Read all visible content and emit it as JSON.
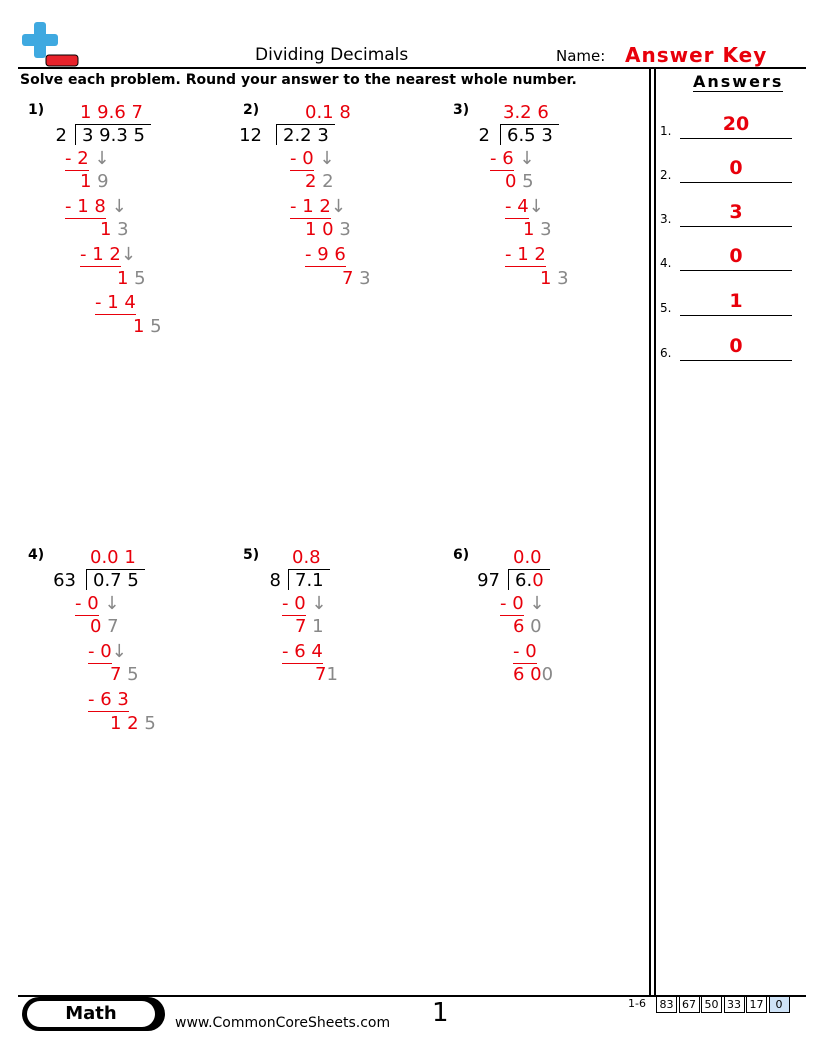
{
  "header": {
    "title": "Dividing Decimals",
    "name_label": "Name:",
    "answer_key": "Answer Key",
    "instructions": "Solve each problem. Round your answer to the nearest whole number."
  },
  "problems": [
    {
      "number": "1)",
      "quotient": "1 9.6 7",
      "divisor": "2",
      "dividend": "3 9.3 5",
      "rows": [
        {
          "red": "- 2",
          "gray": " ↓"
        },
        {
          "red": "1",
          "gray": " 9"
        },
        {
          "red": "- 1 8",
          "gray": " ↓"
        },
        {
          "red": "1",
          "gray": " 3"
        },
        {
          "red": "- 1 2",
          "gray": "↓"
        },
        {
          "red": "1",
          "gray": " 5"
        },
        {
          "red": "- 1 4"
        },
        {
          "red": "1",
          "gray": " 5"
        }
      ]
    },
    {
      "number": "2)",
      "quotient": "0.1 8",
      "divisor": "12",
      "dividend": "2.2 3",
      "rows": [
        {
          "red": "- 0",
          "gray": " ↓"
        },
        {
          "red": "2",
          "gray": " 2"
        },
        {
          "red": "- 1 2",
          "gray": "↓"
        },
        {
          "red": "1 0",
          "gray": " 3"
        },
        {
          "red": "- 9 6"
        },
        {
          "red": "7",
          "gray": " 3"
        }
      ]
    },
    {
      "number": "3)",
      "quotient": "3.2 6",
      "divisor": "2",
      "dividend": "6.5 3",
      "rows": [
        {
          "red": "- 6",
          "gray": " ↓"
        },
        {
          "red": "0",
          "gray": " 5"
        },
        {
          "red": "- 4",
          "gray": "↓"
        },
        {
          "red": "1",
          "gray": " 3"
        },
        {
          "red": "- 1 2"
        },
        {
          "red": "1",
          "gray": " 3"
        }
      ]
    },
    {
      "number": "4)",
      "quotient": "0.0 1",
      "divisor": "63",
      "dividend": "0.7 5",
      "rows": [
        {
          "red": "- 0",
          "gray": " ↓"
        },
        {
          "red": "0",
          "gray": " 7"
        },
        {
          "red": "- 0",
          "gray": "↓"
        },
        {
          "red": "7",
          "gray": " 5"
        },
        {
          "red": "- 6 3"
        },
        {
          "red": "1 2",
          "gray": " 5"
        }
      ]
    },
    {
      "number": "5)",
      "quotient": "0.8",
      "divisor": "8",
      "dividend": "7.1",
      "rows": [
        {
          "red": "- 0",
          "gray": " ↓"
        },
        {
          "red": "7",
          "gray": " 1"
        },
        {
          "red": "- 6 4"
        },
        {
          "red": "7",
          "gray": "1"
        }
      ]
    },
    {
      "number": "6)",
      "quotient": "0.0",
      "divisor": "97",
      "dividend": "6.",
      "dividend_added": "0",
      "rows": [
        {
          "red": "- 0",
          "gray": " ↓"
        },
        {
          "red": "6",
          "gray": " 0"
        },
        {
          "red": "- 0"
        },
        {
          "red": "6 0",
          "gray": "0"
        }
      ]
    }
  ],
  "answers": {
    "title": "Answers",
    "items": [
      {
        "label": "1.",
        "value": "20"
      },
      {
        "label": "2.",
        "value": "0"
      },
      {
        "label": "3.",
        "value": "3"
      },
      {
        "label": "4.",
        "value": "0"
      },
      {
        "label": "5.",
        "value": "1"
      },
      {
        "label": "6.",
        "value": "0"
      }
    ]
  },
  "footer": {
    "subject": "Math",
    "website": "www.CommonCoreSheets.com",
    "page": "1",
    "range": "1-6",
    "scores": [
      "83",
      "67",
      "50",
      "33",
      "17",
      "0"
    ]
  }
}
